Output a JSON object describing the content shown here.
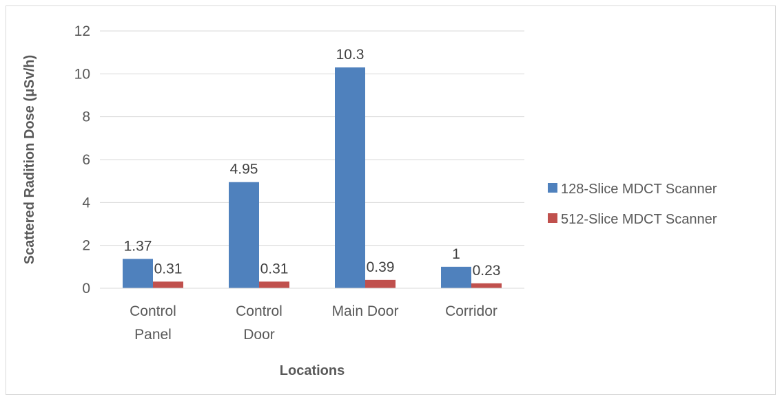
{
  "chart_data": {
    "type": "bar",
    "categories": [
      [
        "Control",
        "Panel"
      ],
      [
        "Control",
        "Door"
      ],
      [
        "Main Door"
      ],
      [
        "Corridor"
      ]
    ],
    "series": [
      {
        "name": "128-Slice MDCT Scanner",
        "color": "#4f81bd",
        "values": [
          1.37,
          4.95,
          10.3,
          1
        ],
        "labels": [
          "1.37",
          "4.95",
          "10.3",
          "1"
        ]
      },
      {
        "name": "512-Slice MDCT Scanner",
        "color": "#c0504d",
        "values": [
          0.31,
          0.31,
          0.39,
          0.23
        ],
        "labels": [
          "0.31",
          "0.31",
          "0.39",
          "0.23"
        ]
      }
    ],
    "xlabel": "Locations",
    "ylabel": "Scattered Radition Dose (μSv/h)",
    "ylim": [
      0,
      12
    ],
    "yticks": [
      0,
      2,
      4,
      6,
      8,
      10,
      12
    ],
    "grid": true,
    "legend": "right"
  }
}
